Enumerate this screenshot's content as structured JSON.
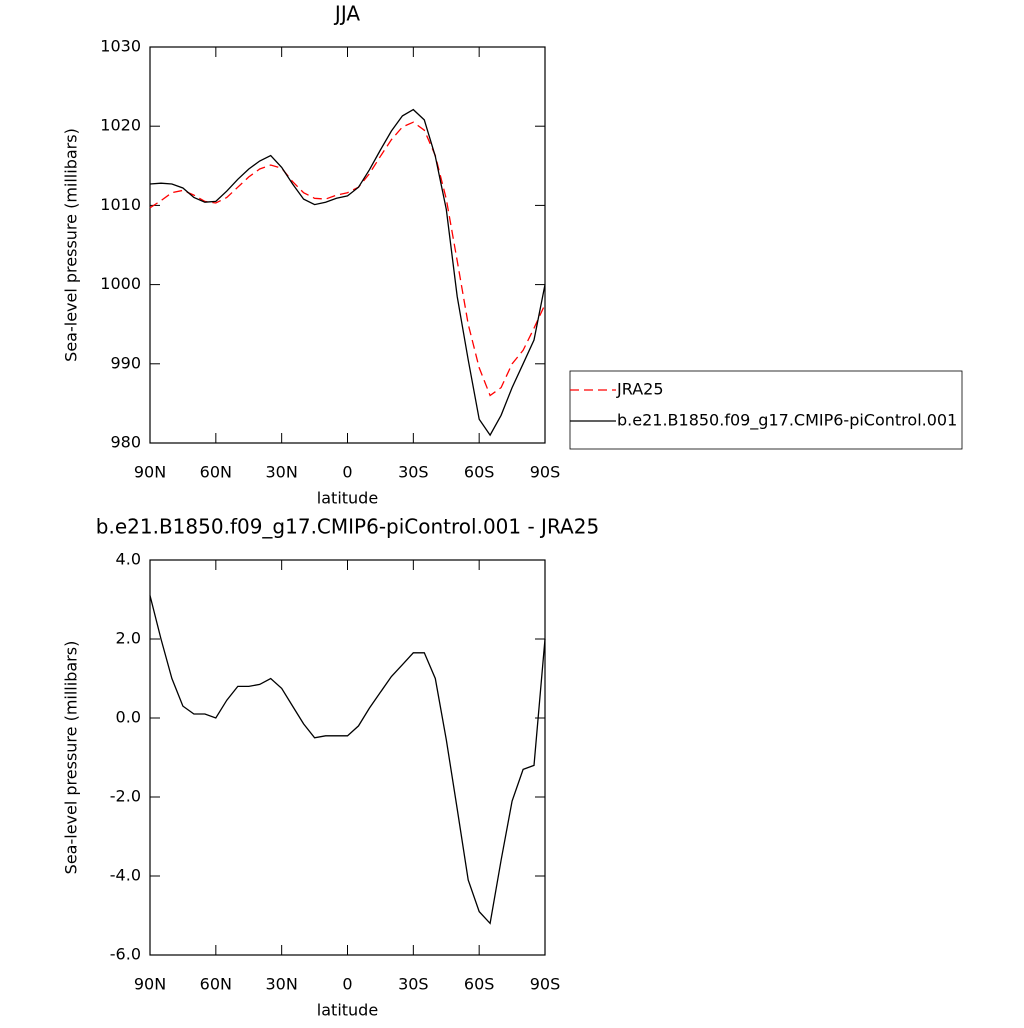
{
  "chart_data": [
    {
      "type": "line",
      "title": "JJA",
      "x_label": "latitude",
      "y_label": "Sea-level pressure (millibars)",
      "x": [
        90,
        85,
        80,
        75,
        70,
        65,
        60,
        55,
        50,
        45,
        40,
        35,
        30,
        25,
        20,
        15,
        10,
        5,
        0,
        -5,
        -10,
        -15,
        -20,
        -25,
        -30,
        -35,
        -40,
        -45,
        -50,
        -55,
        -60,
        -65,
        -70,
        -75,
        -80,
        -85,
        -90
      ],
      "series": [
        {
          "name": "JRA25",
          "color": "#ff0000",
          "line_style": "dashed",
          "values": [
            1009.7,
            1010.6,
            1011.6,
            1011.9,
            1011.3,
            1010.5,
            1010.3,
            1011.0,
            1012.3,
            1013.6,
            1014.6,
            1015.1,
            1014.7,
            1013.0,
            1011.6,
            1010.9,
            1010.8,
            1011.3,
            1011.6,
            1012.3,
            1014.0,
            1016.2,
            1018.3,
            1019.9,
            1020.5,
            1019.5,
            1016.3,
            1010.8,
            1003.0,
            995.0,
            989.5,
            986.0,
            987.0,
            990.0,
            991.7,
            994.5,
            997.5
          ]
        },
        {
          "name": "b.e21.B1850.f09_g17.CMIP6-piControl.001",
          "color": "#000000",
          "line_style": "solid",
          "values": [
            1012.7,
            1012.8,
            1012.7,
            1012.2,
            1011.0,
            1010.4,
            1010.5,
            1011.8,
            1013.3,
            1014.6,
            1015.6,
            1016.3,
            1014.8,
            1012.7,
            1010.8,
            1010.1,
            1010.4,
            1010.9,
            1011.2,
            1012.3,
            1014.5,
            1017.0,
            1019.4,
            1021.3,
            1022.1,
            1020.8,
            1016.2,
            1009.5,
            998.5,
            990.5,
            983.0,
            981.0,
            983.5,
            987.0,
            990.0,
            993.0,
            1000.0
          ]
        }
      ],
      "xlim": [
        90,
        -90
      ],
      "xticks": [
        {
          "value": 90,
          "label": "90N"
        },
        {
          "value": 60,
          "label": "60N"
        },
        {
          "value": 30,
          "label": "30N"
        },
        0,
        {
          "value": -30,
          "label": "30S"
        },
        {
          "value": -60,
          "label": "60S"
        },
        {
          "value": -90,
          "label": "90S"
        }
      ],
      "ylim": [
        980,
        1030
      ],
      "yticks": [
        980,
        990,
        1000,
        1010,
        1020,
        1030
      ],
      "legend": "right"
    },
    {
      "type": "line",
      "title": "b.e21.B1850.f09_g17.CMIP6-piControl.001 - JRA25",
      "x_label": "latitude",
      "y_label": "Sea-level pressure (millibars)",
      "x": [
        90,
        85,
        80,
        75,
        70,
        65,
        60,
        55,
        50,
        45,
        40,
        35,
        30,
        25,
        20,
        15,
        10,
        5,
        0,
        -5,
        -10,
        -15,
        -20,
        -25,
        -30,
        -35,
        -40,
        -45,
        -50,
        -55,
        -60,
        -65,
        -70,
        -75,
        -80,
        -85,
        -90
      ],
      "series": [
        {
          "color": "#000000",
          "line_style": "solid",
          "values": [
            3.1,
            2.0,
            1.0,
            0.3,
            0.1,
            0.1,
            0.0,
            0.45,
            0.8,
            0.8,
            0.85,
            1.0,
            0.75,
            0.3,
            -0.15,
            -0.5,
            -0.45,
            -0.45,
            -0.45,
            -0.2,
            0.25,
            0.65,
            1.05,
            1.35,
            1.65,
            1.65,
            1.0,
            -0.55,
            -2.3,
            -4.1,
            -4.9,
            -5.2,
            -3.6,
            -2.1,
            -1.3,
            -1.2,
            2.0
          ]
        }
      ],
      "xlim": [
        90,
        -90
      ],
      "xticks": [
        {
          "value": 90,
          "label": "90N"
        },
        {
          "value": 60,
          "label": "60N"
        },
        {
          "value": 30,
          "label": "30N"
        },
        0,
        {
          "value": -30,
          "label": "30S"
        },
        {
          "value": -60,
          "label": "60S"
        },
        {
          "value": -90,
          "label": "90S"
        }
      ],
      "ylim": [
        -6,
        4
      ],
      "yticks": [
        {
          "value": -6,
          "label": "-6.0"
        },
        {
          "value": -4,
          "label": "-4.0"
        },
        {
          "value": -2,
          "label": "-2.0"
        },
        {
          "value": 0,
          "label": "0.0"
        },
        {
          "value": 2,
          "label": "2.0"
        },
        {
          "value": 4,
          "label": "4.0"
        }
      ]
    }
  ]
}
